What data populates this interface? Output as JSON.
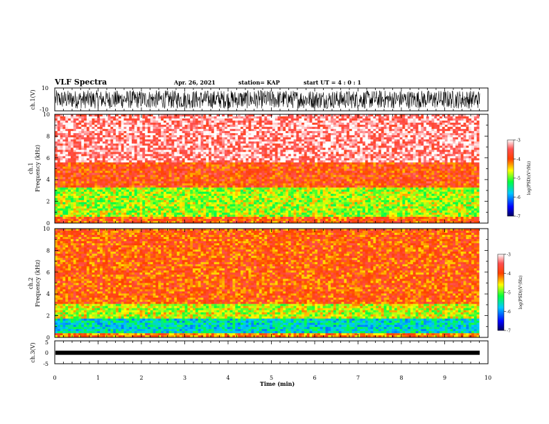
{
  "header": {
    "title": "VLF Spectra",
    "date": "Apr. 26, 2021",
    "station": "station= KAP",
    "start_ut": "start  UT =  4 : 0  : 1"
  },
  "chart_data": [
    {
      "type": "line",
      "panel": "ch1-waveform",
      "ylabel": "ch.1(V)",
      "ylim": [
        -10,
        10
      ],
      "yticks": [
        "10",
        "-10"
      ],
      "xlim": [
        0,
        10
      ],
      "color": "#000000",
      "description_values": {
        "signal_min": -8,
        "signal_max": 8
      }
    },
    {
      "type": "heatmap",
      "panel": "ch1-spectrogram",
      "ylabel": "ch.1\nFrequency  (kHz)",
      "ylabel_line1": "ch.1",
      "ylabel_line2": "Frequency  (kHz)",
      "ylim": [
        0,
        10
      ],
      "yticks": [
        "0",
        "2",
        "4",
        "6",
        "8",
        "10"
      ],
      "xlim": [
        0,
        9.8
      ],
      "colorbar": {
        "label": "log(PSD)(V²/Hz)",
        "ticks": [
          "-3",
          "-4",
          "-5",
          "-6",
          "-7"
        ],
        "range": [
          -7,
          -3
        ]
      },
      "bands": [
        {
          "from_khz": 0,
          "to_khz": 0.5,
          "level": -4.0
        },
        {
          "from_khz": 0.5,
          "to_khz": 3.3,
          "level": -4.8
        },
        {
          "from_khz": 3.3,
          "to_khz": 5.5,
          "level": -3.9
        },
        {
          "from_khz": 5.5,
          "to_khz": 10,
          "level": -3.3
        }
      ]
    },
    {
      "type": "heatmap",
      "panel": "ch2-spectrogram",
      "ylabel_line1": "ch.2",
      "ylabel_line2": "Frequency  (kHz)",
      "ylim": [
        0,
        10
      ],
      "yticks": [
        "0",
        "2",
        "4",
        "6",
        "8",
        "10"
      ],
      "xlim": [
        0,
        9.8
      ],
      "colorbar": {
        "label": "log(PSD)(V²/Hz)",
        "ticks": [
          "-3",
          "-4",
          "-5",
          "-6",
          "-7"
        ],
        "range": [
          -7,
          -3
        ]
      },
      "bands": [
        {
          "from_khz": 0,
          "to_khz": 0.3,
          "level": -4.2
        },
        {
          "from_khz": 0.3,
          "to_khz": 1.8,
          "level": -5.6
        },
        {
          "from_khz": 1.8,
          "to_khz": 3.0,
          "level": -4.7
        },
        {
          "from_khz": 3.0,
          "to_khz": 10,
          "level": -4.0
        }
      ]
    },
    {
      "type": "line",
      "panel": "ch3-waveform",
      "ylabel": "ch.3(V)",
      "ylim": [
        -5,
        5
      ],
      "yticks": [
        "5",
        "0",
        "-5"
      ],
      "xlim": [
        0,
        10
      ],
      "level": -0.2,
      "xlabel": "Time  (min)",
      "xticks": [
        "0",
        "1",
        "2",
        "3",
        "4",
        "5",
        "6",
        "7",
        "8",
        "9",
        "10"
      ]
    }
  ]
}
